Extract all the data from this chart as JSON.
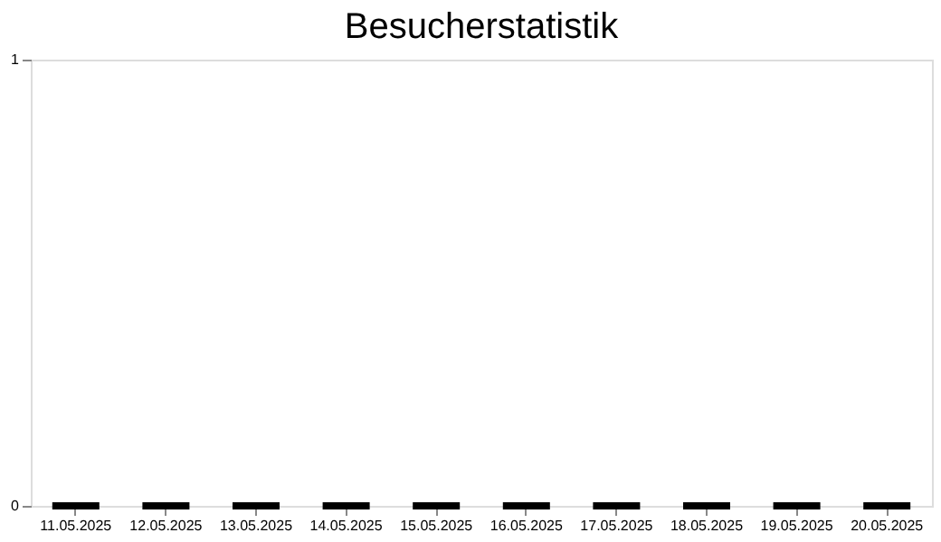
{
  "chart_data": {
    "type": "bar",
    "title": "Besucherstatistik",
    "categories": [
      "11.05.2025",
      "12.05.2025",
      "13.05.2025",
      "14.05.2025",
      "15.05.2025",
      "16.05.2025",
      "17.05.2025",
      "18.05.2025",
      "19.05.2025",
      "20.05.2025"
    ],
    "values": [
      0,
      0,
      0,
      0,
      0,
      0,
      0,
      0,
      0,
      0
    ],
    "color": "#000000",
    "ylim": [
      0,
      1
    ],
    "yticks": [
      0,
      1
    ],
    "grid": false
  }
}
